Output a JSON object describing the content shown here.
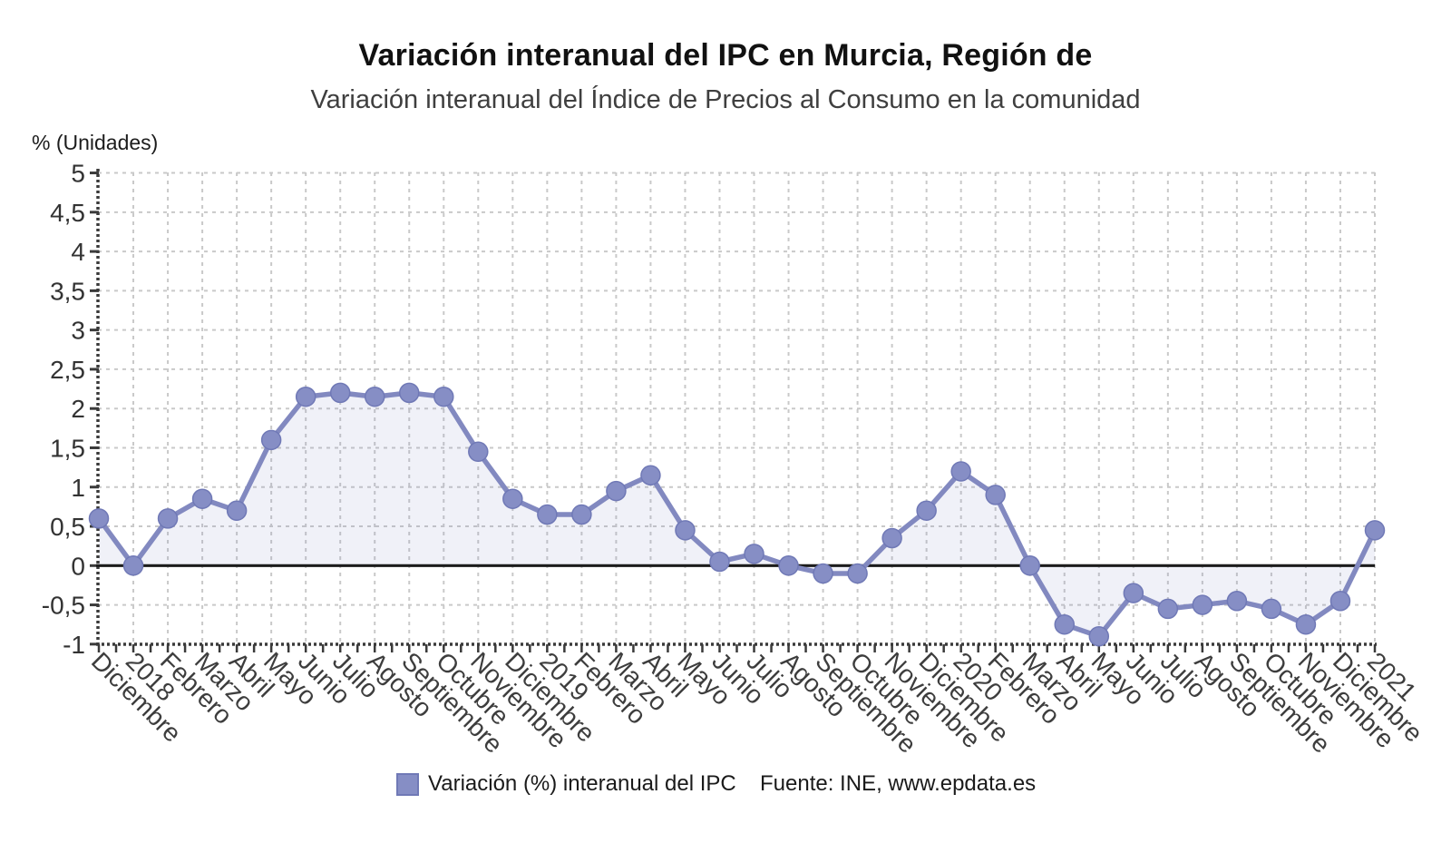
{
  "header": {
    "title": "Variación interanual del IPC en Murcia, Región de",
    "subtitle": "Variación interanual del Índice de Precios al Consumo en la comunidad"
  },
  "chart_data": {
    "type": "line",
    "title": "Variación interanual del IPC en Murcia, Región de",
    "subtitle": "Variación interanual del Índice de Precios al Consumo en la comunidad",
    "ylabel": "% (Unidades)",
    "xlabel": "",
    "ylim": [
      -1,
      5
    ],
    "ytick_step": 0.5,
    "ytick_labels": [
      "5",
      "4,5",
      "4",
      "3,5",
      "3",
      "2,5",
      "2",
      "1,5",
      "1",
      "0,5",
      "0",
      "-0,5",
      "-1"
    ],
    "grid": true,
    "legend_position": "bottom",
    "categories": [
      "Diciembre",
      "2018",
      "Febrero",
      "Marzo",
      "Abril",
      "Mayo",
      "Junio",
      "Julio",
      "Agosto",
      "Septiembre",
      "Octubre",
      "Noviembre",
      "Diciembre",
      "2019",
      "Febrero",
      "Marzo",
      "Abril",
      "Mayo",
      "Junio",
      "Julio",
      "Agosto",
      "Septiembre",
      "Octubre",
      "Noviembre",
      "Diciembre",
      "2020",
      "Febrero",
      "Marzo",
      "Abril",
      "Mayo",
      "Junio",
      "Julio",
      "Agosto",
      "Septiembre",
      "Octubre",
      "Noviembre",
      "Diciembre",
      "2021"
    ],
    "series": [
      {
        "name": "Variación (%) interanual del IPC",
        "values": [
          0.6,
          0.0,
          0.6,
          0.85,
          0.7,
          1.6,
          2.15,
          2.2,
          2.15,
          2.2,
          2.15,
          1.45,
          0.85,
          0.65,
          0.65,
          0.95,
          1.15,
          0.45,
          0.05,
          0.15,
          0.0,
          -0.1,
          -0.1,
          0.35,
          0.7,
          1.2,
          0.9,
          0.0,
          -0.75,
          -0.9,
          -0.35,
          -0.55,
          -0.5,
          -0.45,
          -0.55,
          -0.75,
          -0.45,
          0.45
        ]
      }
    ],
    "colors": {
      "line": "#8289c0",
      "marker_fill": "#868ec5",
      "marker_border": "#7079b6",
      "area_fill": "rgba(134,142,197,0.12)",
      "zero_line": "#1c1c1c",
      "grid": "#c9c9c9",
      "axis": "#3a3a3a",
      "tick_text": "#333333"
    }
  },
  "legend": {
    "series_label": "Variación (%) interanual del IPC",
    "source_label": "Fuente: INE, www.epdata.es"
  }
}
